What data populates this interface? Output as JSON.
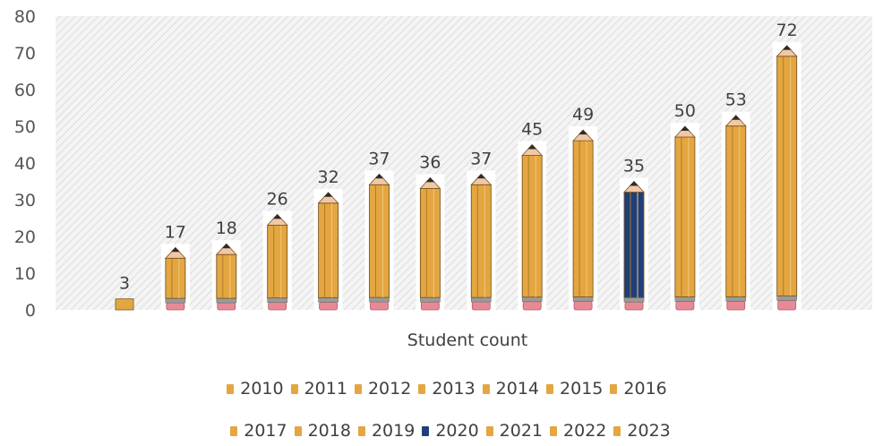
{
  "chart_data": {
    "type": "bar",
    "xlabel": "Student count",
    "ylim": [
      0,
      80
    ],
    "yticks": [
      0,
      10,
      20,
      30,
      40,
      50,
      60,
      70,
      80
    ],
    "grid": false,
    "legend_placement": "bottom",
    "series": [
      {
        "name": "2010",
        "value": 3,
        "color": "#e3a640"
      },
      {
        "name": "2011",
        "value": 17,
        "color": "#e3a640"
      },
      {
        "name": "2012",
        "value": 18,
        "color": "#e3a640"
      },
      {
        "name": "2013",
        "value": 26,
        "color": "#e3a640"
      },
      {
        "name": "2014",
        "value": 32,
        "color": "#e3a640"
      },
      {
        "name": "2015",
        "value": 37,
        "color": "#e3a640"
      },
      {
        "name": "2016",
        "value": 36,
        "color": "#e3a640"
      },
      {
        "name": "2017",
        "value": 37,
        "color": "#e3a640"
      },
      {
        "name": "2018",
        "value": 45,
        "color": "#e3a640"
      },
      {
        "name": "2019",
        "value": 49,
        "color": "#e3a640"
      },
      {
        "name": "2020",
        "value": 35,
        "color": "#1f3f7a"
      },
      {
        "name": "2021",
        "value": 50,
        "color": "#e3a640"
      },
      {
        "name": "2022",
        "value": 53,
        "color": "#e3a640"
      },
      {
        "name": "2023",
        "value": 72,
        "color": "#e3a640"
      }
    ]
  }
}
